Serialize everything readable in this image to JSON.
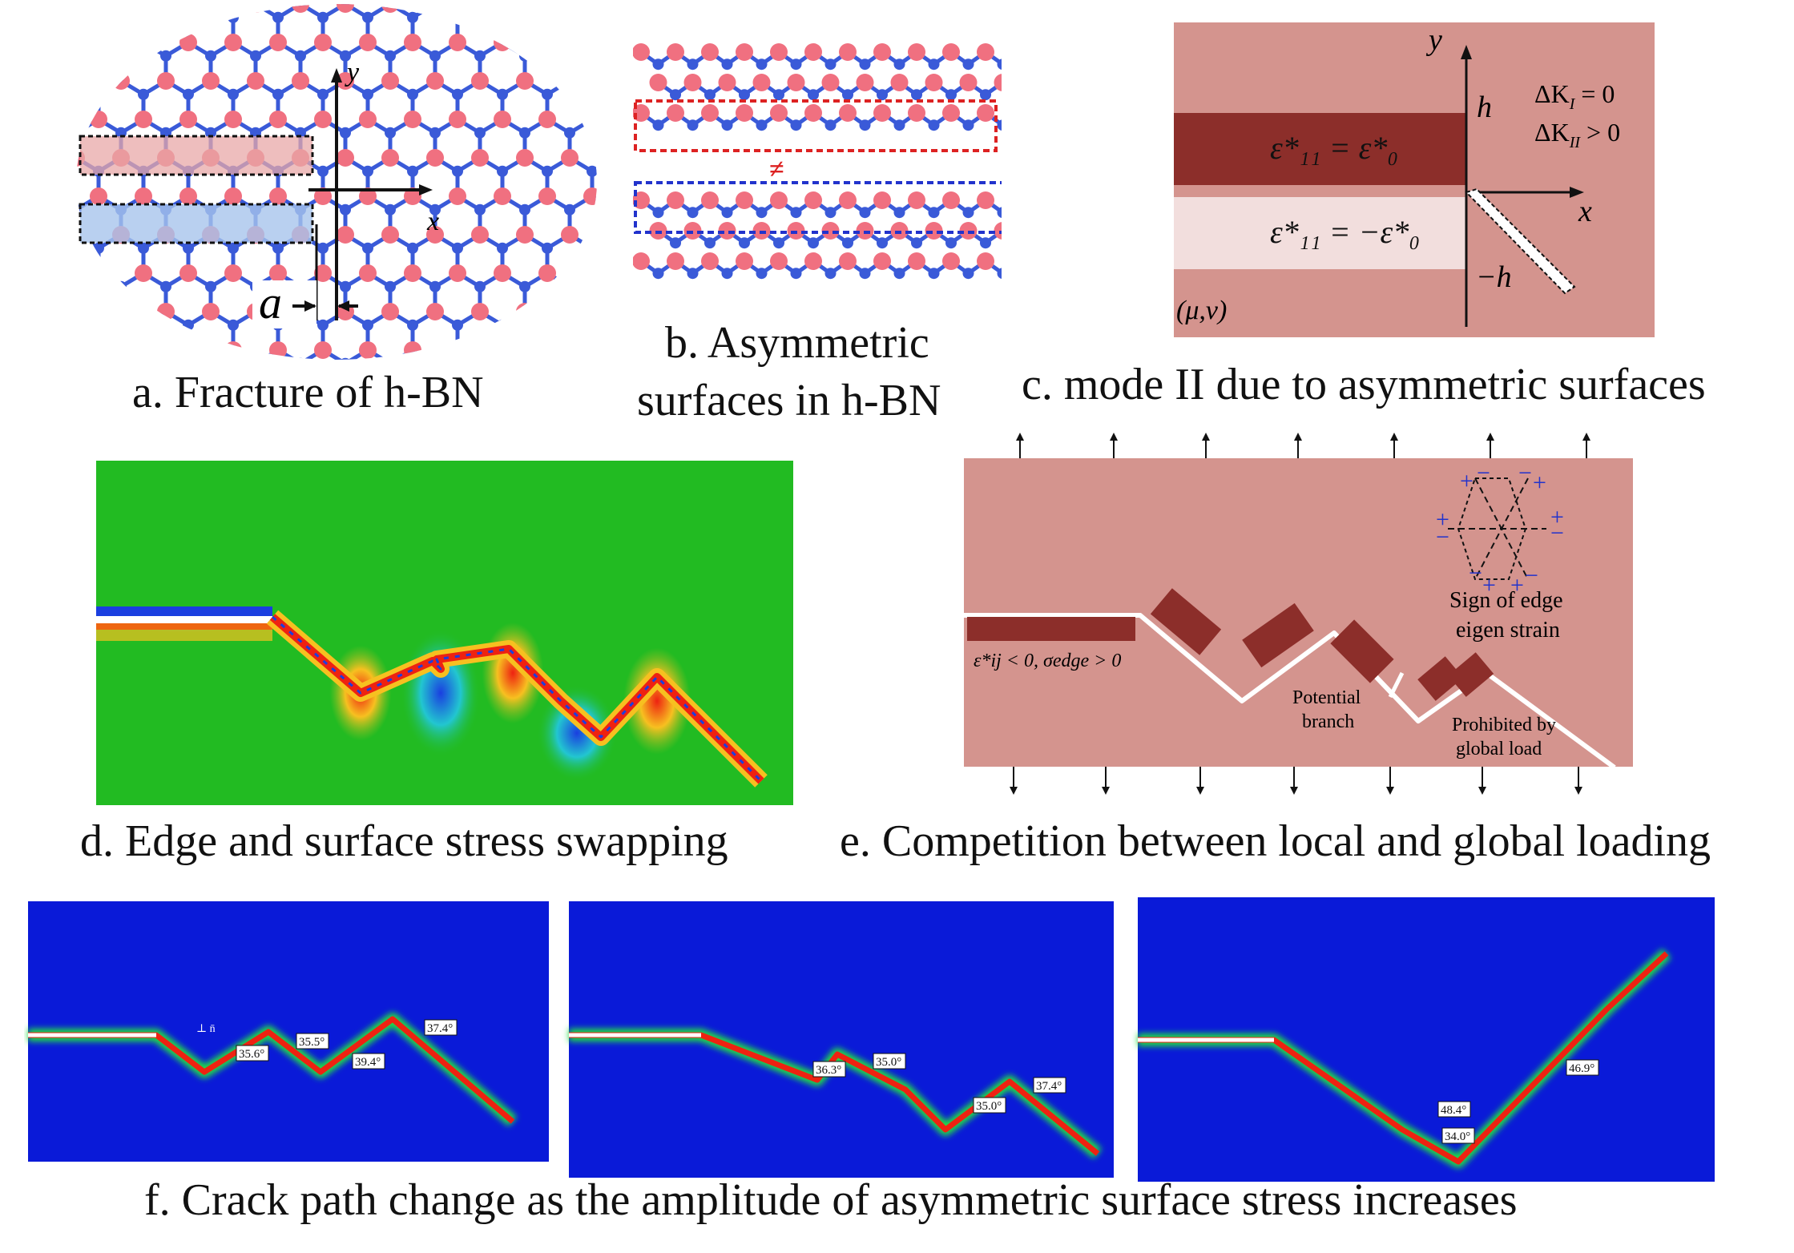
{
  "panels": {
    "a": {
      "caption": "a. Fracture of h-BN",
      "axis_x": "x",
      "axis_y": "y",
      "dim_label": "a",
      "colors": {
        "boron": "#f07080",
        "nitrogen": "#3a5ad8",
        "bond": "#3a5ad8",
        "hydrogen": "#999999",
        "upper_box": "#e8a8a8",
        "lower_box": "#a8c4ec"
      }
    },
    "b": {
      "caption_line1": "b. Asymmetric",
      "caption_line2": "surfaces in h-BN",
      "not_equal_symbol": "≠",
      "colors": {
        "upper_box": "#dd2222",
        "lower_box": "#2233cc"
      }
    },
    "c": {
      "caption": "c. mode II due to asymmetric surfaces",
      "axis_y": "y",
      "axis_x": "x",
      "label_h": "h",
      "label_neg_h": "−h",
      "delta_k1": "ΔK",
      "delta_k1_sub": "I",
      "delta_k1_rhs": " = 0",
      "delta_k2": "ΔK",
      "delta_k2_sub": "II",
      "delta_k2_rhs": " > 0",
      "strain_upper": "ε*₁₁ = ε*₀",
      "strain_lower": "ε*₁₁ = −ε*₀",
      "material": "(μ,ν)",
      "colors": {
        "background": "#d4948e",
        "upper_strip": "#8c2e2a",
        "lower_strip": "#f2dedd"
      }
    },
    "d": {
      "caption": "d. Edge and surface stress swapping",
      "colors": {
        "field": "#22bb22",
        "crack_hot": "#ee2211",
        "crack_warm": "#f7c020",
        "cool": "#2277ee"
      }
    },
    "e": {
      "caption": "e. Competition between local and global loading",
      "label_strain": "ε*ij < 0, σedge > 0",
      "label_sign": "Sign of edge",
      "label_sign2": "eigen strain",
      "label_branch": "Potential",
      "label_branch2": "branch",
      "label_prohibited": "Prohibited by",
      "label_prohibited2": "global load",
      "plus": "+",
      "minus": "−",
      "colors": {
        "background": "#d4948e",
        "block": "#8c2e2a",
        "crack": "#ffffff",
        "signs": "#2233cc"
      }
    },
    "f": {
      "caption": "f. Crack path change as the amplitude of asymmetric surface stress increases",
      "normal_label": "⊥ n̄",
      "angles_1": [
        "35.6°",
        "35.5°",
        "39.4°",
        "37.4°"
      ],
      "angles_2": [
        "36.3°",
        "35.0°",
        "35.0°",
        "37.4°"
      ],
      "angles_3": [
        "48.4°",
        "34.0°",
        "46.9°"
      ],
      "colors": {
        "field": "#0a1ad8",
        "crack_hot": "#ee2211",
        "crack_glow": "#22dd44"
      }
    }
  }
}
